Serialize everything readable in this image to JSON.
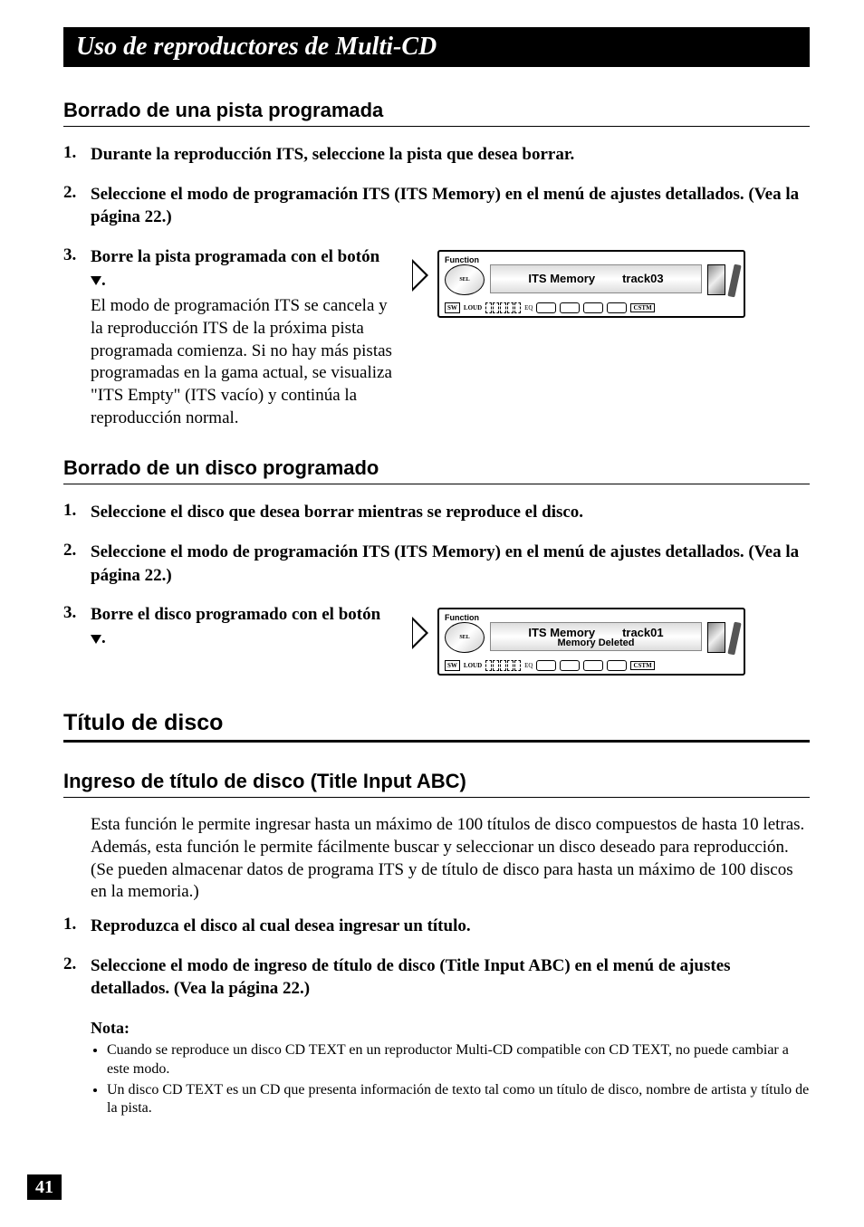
{
  "banner_title": "Uso de reproductores de Multi-CD",
  "page_number": "41",
  "section1": {
    "title": "Borrado de una pista programada",
    "steps": {
      "s1": {
        "num": "1.",
        "bold": "Durante la reproducción ITS, seleccione la pista que desea borrar."
      },
      "s2": {
        "num": "2.",
        "bold": "Seleccione el modo de programación ITS (ITS Memory) en el menú de ajustes detallados. (Vea la página 22.)"
      },
      "s3": {
        "num": "3.",
        "bold_pre": "Borre la pista programada con el botón ",
        "bold_post": ".",
        "plain": "El modo de programación ITS se cancela y la reproducción ITS de la próxima pista programada comienza. Si no hay más pistas programadas en la gama actual, se visualiza \"ITS Empty\" (ITS vacío) y continúa la reproducción normal."
      }
    },
    "display": {
      "function_label": "Function",
      "wheel_text": "SEL",
      "main_text_left": "ITS Memory",
      "main_text_right": "track03",
      "sw_label": "SW",
      "loud_label": "LOUD",
      "eq_label": "EQ",
      "cstm_label": "CSTM"
    }
  },
  "section2": {
    "title": "Borrado de un disco programado",
    "steps": {
      "s1": {
        "num": "1.",
        "bold": "Seleccione el disco que desea borrar mientras se reproduce el disco."
      },
      "s2": {
        "num": "2.",
        "bold": "Seleccione el modo de programación ITS (ITS Memory) en el menú de ajustes detallados. (Vea la página 22.)"
      },
      "s3": {
        "num": "3.",
        "bold_pre": "Borre el disco programado con el botón ",
        "bold_post": "."
      }
    },
    "display": {
      "function_label": "Function",
      "wheel_text": "SEL",
      "main_text_left": "ITS Memory",
      "main_text_right": "track01",
      "sub_text": "Memory Deleted",
      "sw_label": "SW",
      "loud_label": "LOUD",
      "eq_label": "EQ",
      "cstm_label": "CSTM"
    }
  },
  "section3": {
    "title": "Título de disco",
    "subtitle": "Ingreso de título de disco (Title Input ABC)",
    "intro": "Esta función le permite ingresar hasta un máximo de 100 títulos de disco compuestos de hasta 10 letras. Además, esta función le permite fácilmente buscar y seleccionar un disco deseado para reproducción. (Se pueden almacenar datos de programa ITS y de título de disco para hasta un máximo de 100 discos en la memoria.)",
    "steps": {
      "s1": {
        "num": "1.",
        "bold": "Reproduzca el disco al cual desea ingresar un título."
      },
      "s2": {
        "num": "2.",
        "bold": "Seleccione el modo de ingreso de título de disco (Title Input ABC) en el menú de ajustes detallados. (Vea la página 22.)"
      }
    },
    "nota_label": "Nota:",
    "nota_items": {
      "n1": "Cuando se reproduce un disco CD TEXT en un reproductor Multi-CD compatible con CD TEXT, no puede cambiar a este modo.",
      "n2": "Un disco CD TEXT es un CD que presenta información de texto tal como un título de disco, nombre de artista y título de la pista."
    }
  }
}
